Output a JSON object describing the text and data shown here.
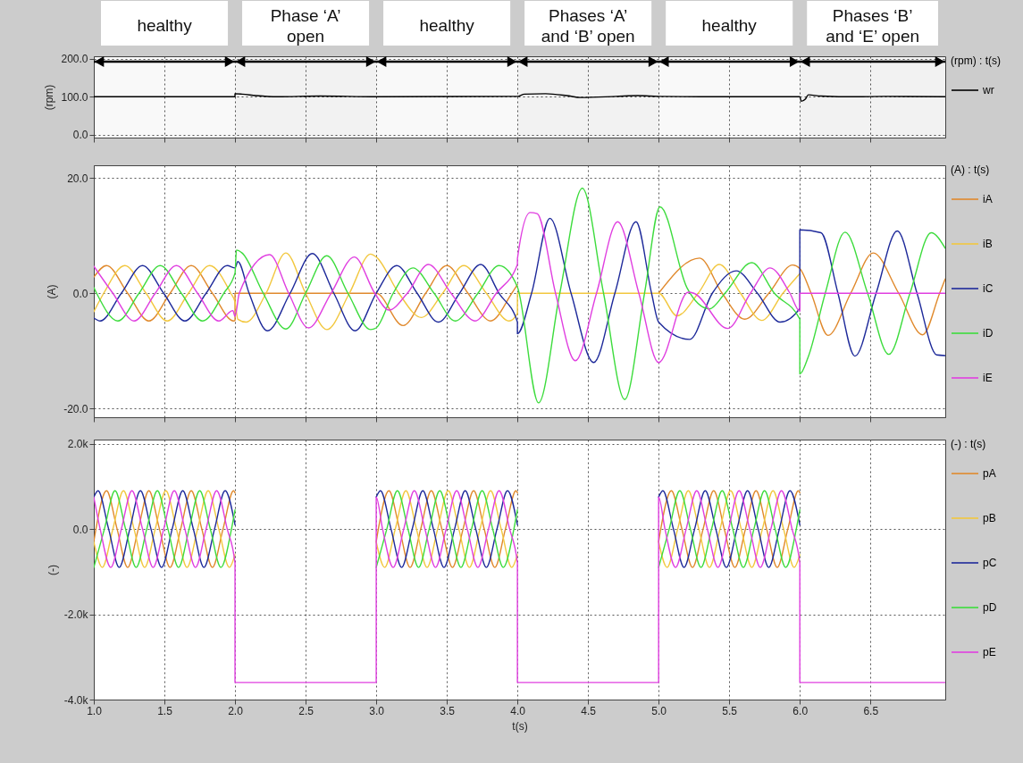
{
  "chart_data": [
    {
      "type": "line",
      "ylabel": "(rpm)",
      "legend_title": "(rpm) : t(s)",
      "legend": "right",
      "grid": true,
      "tick_labels": "y",
      "xlim": [
        1,
        7.03
      ],
      "ylim": [
        -8,
        207
      ],
      "xticks": [
        {
          "value": 1,
          "label": null
        },
        {
          "value": 1.5,
          "label": null
        },
        {
          "value": 2,
          "label": null
        },
        {
          "value": 2.5,
          "label": null
        },
        {
          "value": 3,
          "label": null
        },
        {
          "value": 3.5,
          "label": null
        },
        {
          "value": 4,
          "label": null
        },
        {
          "value": 4.5,
          "label": null
        },
        {
          "value": 5,
          "label": null
        },
        {
          "value": 5.5,
          "label": null
        },
        {
          "value": 6,
          "label": null
        },
        {
          "value": 6.5,
          "label": null
        }
      ],
      "yticks": [
        {
          "value": 0,
          "label": "0.0"
        },
        {
          "value": 100,
          "label": "100.0"
        },
        {
          "value": 200,
          "label": "200.0"
        }
      ],
      "bands": [
        {
          "axis": "x",
          "from": 1,
          "to": 2,
          "label": "healthy"
        },
        {
          "axis": "x",
          "from": 2,
          "to": 3,
          "label": "Phase ‘A’ open"
        },
        {
          "axis": "x",
          "from": 3,
          "to": 4,
          "label": "healthy"
        },
        {
          "axis": "x",
          "from": 4,
          "to": 5,
          "label": "Phases ‘A’ and ‘B’ open"
        },
        {
          "axis": "x",
          "from": 5,
          "to": 6,
          "label": "healthy"
        },
        {
          "axis": "x",
          "from": 6,
          "to": 7.03,
          "label": "Phases ‘B’ and ‘E’ open"
        }
      ],
      "series": [
        {
          "name": "wr",
          "color": "#000000",
          "x": [
            1,
            2,
            2,
            2.05,
            2.15,
            2.3,
            2.6,
            3,
            4,
            4.05,
            4.2,
            4.35,
            4.45,
            4.7,
            4.85,
            5,
            5.3,
            6,
            6.01,
            6.04,
            6.06,
            6.15,
            6.4,
            6.6,
            7.03
          ],
          "values": [
            100,
            100,
            108,
            107,
            103,
            100,
            102,
            100,
            101,
            107,
            108,
            103,
            98,
            101,
            103,
            101,
            100,
            100,
            88,
            94,
            105,
            102,
            100,
            101,
            100
          ]
        }
      ]
    },
    {
      "type": "line",
      "ylabel": "(A)",
      "legend_title": "(A) : t(s)",
      "legend": "right",
      "grid": true,
      "tick_labels": "y",
      "xlim": [
        1,
        7.03
      ],
      "ylim": [
        -21.5,
        22.2
      ],
      "xticks": [
        {
          "value": 1,
          "label": null
        },
        {
          "value": 1.5,
          "label": null
        },
        {
          "value": 2,
          "label": null
        },
        {
          "value": 2.5,
          "label": null
        },
        {
          "value": 3,
          "label": null
        },
        {
          "value": 3.5,
          "label": null
        },
        {
          "value": 4,
          "label": null
        },
        {
          "value": 4.5,
          "label": null
        },
        {
          "value": 5,
          "label": null
        },
        {
          "value": 5.5,
          "label": null
        },
        {
          "value": 6,
          "label": null
        },
        {
          "value": 6.5,
          "label": null
        }
      ],
      "yticks": [
        {
          "value": -20,
          "label": "-20.0"
        },
        {
          "value": 0,
          "label": "0.0"
        },
        {
          "value": 20,
          "label": "20.0"
        }
      ],
      "series": [
        {
          "name": "iA",
          "color": "#e0892c",
          "x": [
            1,
            1.09,
            1.24,
            1.39,
            1.54,
            1.69,
            1.84,
            1.99,
            2,
            2,
            3,
            3.19,
            3.35,
            3.5,
            3.65,
            3.81,
            3.96,
            4,
            4.5,
            5,
            5.29,
            5.45,
            5.61,
            5.78,
            5.95,
            6,
            6.08,
            6.2,
            6.36,
            6.52,
            6.7,
            6.87,
            6.99,
            7.03
          ],
          "values": [
            2.8,
            4.8,
            0,
            -4.8,
            0,
            4.8,
            0,
            -4.8,
            -4.7,
            0,
            0,
            -5.6,
            0,
            4.8,
            0,
            -4.8,
            0,
            1.5,
            null,
            0,
            6.1,
            0,
            -4.5,
            0,
            4.9,
            4.3,
            0,
            -7.3,
            0,
            7,
            0,
            -7.2,
            0,
            2.5
          ]
        },
        {
          "name": "iB",
          "color": "#f2c73e",
          "x": [
            1,
            1.07,
            1.22,
            1.37,
            1.52,
            1.67,
            1.82,
            1.97,
            2,
            2.02,
            2.08,
            2.22,
            2.36,
            2.5,
            2.65,
            2.81,
            2.96,
            3,
            3.16,
            3.32,
            3.47,
            3.62,
            3.78,
            3.94,
            4,
            4,
            5,
            5.13,
            5.28,
            5.43,
            5.58,
            5.73,
            5.88,
            6
          ],
          "values": [
            -3.2,
            0,
            4.8,
            0,
            -4.8,
            0,
            4.8,
            0,
            -1.5,
            -4.5,
            -5,
            0,
            7,
            0,
            -6.3,
            0,
            6.8,
            6.3,
            0,
            -4.2,
            0,
            4.8,
            0,
            -4.8,
            -3.5,
            0,
            0,
            -3.9,
            0,
            5,
            0,
            -4.7,
            0,
            3.4
          ]
        },
        {
          "name": "iC",
          "color": "#1e2a9a",
          "x": [
            1,
            1.045,
            1.195,
            1.345,
            1.495,
            1.645,
            1.795,
            1.945,
            2,
            2.02,
            2.1,
            2.23,
            2.39,
            2.548,
            2.7,
            2.85,
            3,
            3.145,
            3.29,
            3.44,
            3.59,
            3.74,
            3.87,
            4,
            4,
            4.1,
            4.23,
            4.38,
            4.54,
            4.69,
            4.84,
            4.95,
            5,
            5.22,
            5.38,
            5.55,
            5.7,
            5.86,
            6,
            6,
            6.15,
            6.27,
            6.39,
            6.54,
            6.69,
            6.83,
            6.97,
            7.03
          ],
          "values": [
            -4.3,
            -4.8,
            0,
            4.8,
            0,
            -4.8,
            0,
            4.8,
            4.4,
            5.5,
            0,
            -6.5,
            0,
            6.9,
            0,
            -6.5,
            0,
            4.8,
            0,
            -5,
            0,
            5,
            0,
            -5,
            -7,
            0,
            13,
            0,
            -12,
            0,
            12.4,
            0,
            -5,
            -8,
            0,
            3.9,
            0,
            -5,
            -2.6,
            11,
            10.5,
            0,
            -10.9,
            0,
            10.8,
            0,
            -10.7,
            -10.8
          ]
        },
        {
          "name": "iD",
          "color": "#3ddc3d",
          "x": [
            1,
            1.02,
            1.17,
            1.32,
            1.47,
            1.62,
            1.77,
            1.92,
            2,
            2.01,
            2.05,
            2.2,
            2.36,
            2.5,
            2.65,
            2.8,
            2.96,
            3,
            3.12,
            3.26,
            3.41,
            3.56,
            3.72,
            3.87,
            4,
            4.15,
            4.3,
            4.46,
            4.61,
            4.76,
            4.9,
            5.01,
            5.2,
            5.36,
            5.47,
            5.66,
            5.82,
            6,
            6,
            6.06,
            6.18,
            6.32,
            6.48,
            6.63,
            6.78,
            6.93,
            7.03
          ],
          "values": [
            1,
            0,
            -4.8,
            0,
            4.8,
            0,
            -4.8,
            0,
            3.5,
            7.5,
            7,
            0,
            -6.2,
            0,
            6.5,
            0,
            -6.3,
            -6,
            0,
            4.4,
            0,
            -4.8,
            0,
            4.8,
            1.1,
            -19,
            0,
            18.2,
            0,
            -18.4,
            0,
            15,
            1,
            -2.7,
            0,
            5.3,
            0,
            -4.5,
            -14,
            -11,
            0,
            10.6,
            0,
            -10.6,
            0,
            10.5,
            7.8
          ]
        },
        {
          "name": "iE",
          "color": "#e03fe0",
          "x": [
            1,
            1.135,
            1.285,
            1.435,
            1.585,
            1.735,
            1.885,
            1.985,
            2,
            2.03,
            2.245,
            2.38,
            2.52,
            2.68,
            2.845,
            2.99,
            3.09,
            3.22,
            3.37,
            3.53,
            3.7,
            3.85,
            4,
            4,
            4.09,
            4.14,
            4.27,
            4.41,
            4.56,
            4.71,
            4.86,
            5,
            5.21,
            5.25,
            5.49,
            5.65,
            5.79,
            5.93,
            6,
            6,
            7.03
          ],
          "values": [
            4.7,
            0,
            -4.8,
            0,
            4.8,
            0,
            -4.8,
            -3,
            -4,
            0,
            6.7,
            0,
            -6,
            0,
            6.3,
            0,
            -2.9,
            0,
            5,
            0,
            -4.8,
            0,
            5,
            6,
            14,
            13.8,
            0,
            -11.7,
            0,
            12.4,
            0,
            -12,
            0.2,
            0,
            -6.1,
            0,
            4.4,
            0,
            -3.1,
            0,
            0
          ]
        }
      ]
    },
    {
      "type": "line",
      "xlabel": "t(s)",
      "ylabel": "(-)",
      "legend_title": "(-) : t(s)",
      "legend": "right",
      "grid": true,
      "xlim": [
        1,
        7.03
      ],
      "ylim": [
        -4000,
        2100
      ],
      "xticks": [
        {
          "value": 1,
          "label": "1.0"
        },
        {
          "value": 1.5,
          "label": "1.5"
        },
        {
          "value": 2,
          "label": "2.0"
        },
        {
          "value": 2.5,
          "label": "2.5"
        },
        {
          "value": 3,
          "label": "3.0"
        },
        {
          "value": 3.5,
          "label": "3.5"
        },
        {
          "value": 4,
          "label": "4.0"
        },
        {
          "value": 4.5,
          "label": "4.5"
        },
        {
          "value": 5,
          "label": "5.0"
        },
        {
          "value": 5.5,
          "label": "5.5"
        },
        {
          "value": 6,
          "label": "6.0"
        },
        {
          "value": 6.5,
          "label": "6.5"
        }
      ],
      "yticks": [
        {
          "value": -4000,
          "label": "-4.0k"
        },
        {
          "value": -2000,
          "label": "-2.0k"
        },
        {
          "value": 0,
          "label": "0.0"
        },
        {
          "value": 2000,
          "label": "2.0k"
        }
      ],
      "series": [
        {
          "name": "pA",
          "color": "#e0892c",
          "x": [
            1,
            1.015,
            1.09,
            1.165,
            1.24,
            1.315,
            1.39,
            1.465,
            1.54,
            1.615,
            1.69,
            1.765,
            1.84,
            1.915,
            1.99,
            2,
            2.5,
            3,
            3.015,
            3.09,
            3.165,
            3.24,
            3.315,
            3.39,
            3.465,
            3.54,
            3.615,
            3.69,
            3.765,
            3.84,
            3.915,
            3.99,
            4,
            4.5,
            5,
            5.015,
            5.09,
            5.165,
            5.24,
            5.315,
            5.39,
            5.465,
            5.54,
            5.615,
            5.69,
            5.765,
            5.84,
            5.915,
            5.99,
            6
          ],
          "values": [
            -300,
            0,
            900,
            0,
            -900,
            0,
            900,
            0,
            -900,
            0,
            900,
            0,
            -900,
            0,
            900,
            850,
            null,
            -300,
            0,
            900,
            0,
            -900,
            0,
            900,
            0,
            -900,
            0,
            900,
            0,
            -900,
            0,
            900,
            850,
            null,
            -300,
            0,
            900,
            0,
            -900,
            0,
            900,
            0,
            -900,
            0,
            900,
            0,
            -900,
            0,
            900,
            850
          ]
        },
        {
          "name": "pB",
          "color": "#f2c73e",
          "x": [
            1,
            1.06,
            1.135,
            1.21,
            1.285,
            1.36,
            1.435,
            1.51,
            1.585,
            1.66,
            1.735,
            1.81,
            1.885,
            1.96,
            2,
            2.5,
            3,
            3.06,
            3.135,
            3.21,
            3.285,
            3.36,
            3.435,
            3.51,
            3.585,
            3.66,
            3.735,
            3.81,
            3.885,
            3.96,
            4,
            4.5,
            5,
            5.06,
            5.135,
            5.21,
            5.285,
            5.36,
            5.435,
            5.51,
            5.585,
            5.66,
            5.735,
            5.81,
            5.885,
            5.96,
            6
          ],
          "values": [
            -300,
            -900,
            0,
            900,
            0,
            -900,
            0,
            900,
            0,
            -900,
            0,
            900,
            0,
            -900,
            -600,
            null,
            -300,
            -900,
            0,
            900,
            0,
            -900,
            0,
            900,
            0,
            -900,
            0,
            900,
            0,
            -900,
            -600,
            null,
            -300,
            -900,
            0,
            900,
            0,
            -900,
            0,
            900,
            0,
            -900,
            0,
            900,
            0,
            -900,
            -600
          ]
        },
        {
          "name": "pC",
          "color": "#1e2a9a",
          "x": [
            1,
            1.03,
            1.105,
            1.18,
            1.255,
            1.33,
            1.405,
            1.48,
            1.555,
            1.63,
            1.705,
            1.78,
            1.855,
            1.93,
            2,
            2.5,
            3,
            3.03,
            3.105,
            3.18,
            3.255,
            3.33,
            3.405,
            3.48,
            3.555,
            3.63,
            3.705,
            3.78,
            3.855,
            3.93,
            4,
            4.5,
            5,
            5.03,
            5.105,
            5.18,
            5.255,
            5.33,
            5.405,
            5.48,
            5.555,
            5.63,
            5.705,
            5.78,
            5.855,
            5.93,
            6
          ],
          "values": [
            750,
            900,
            0,
            -900,
            0,
            900,
            0,
            -900,
            0,
            900,
            0,
            -900,
            0,
            900,
            100,
            null,
            750,
            900,
            0,
            -900,
            0,
            900,
            0,
            -900,
            0,
            900,
            0,
            -900,
            0,
            900,
            100,
            null,
            750,
            900,
            0,
            -900,
            0,
            900,
            0,
            -900,
            0,
            900,
            0,
            -900,
            0,
            900,
            100
          ]
        },
        {
          "name": "pD",
          "color": "#3ddc3d",
          "x": [
            1,
            1.075,
            1.15,
            1.225,
            1.3,
            1.375,
            1.45,
            1.525,
            1.6,
            1.675,
            1.75,
            1.825,
            1.9,
            1.975,
            2,
            2.5,
            3,
            3.075,
            3.15,
            3.225,
            3.3,
            3.375,
            3.45,
            3.525,
            3.6,
            3.675,
            3.75,
            3.825,
            3.9,
            3.975,
            4,
            4.5,
            5,
            5.075,
            5.15,
            5.225,
            5.3,
            5.375,
            5.45,
            5.525,
            5.6,
            5.675,
            5.75,
            5.825,
            5.9,
            5.975,
            6
          ],
          "values": [
            -900,
            0,
            900,
            0,
            -900,
            0,
            900,
            0,
            -900,
            0,
            900,
            0,
            -900,
            0,
            450,
            null,
            -900,
            0,
            900,
            0,
            -900,
            0,
            900,
            0,
            -900,
            0,
            900,
            0,
            -900,
            0,
            450,
            null,
            -900,
            0,
            900,
            0,
            -900,
            0,
            900,
            0,
            -900,
            0,
            900,
            0,
            -900,
            0,
            450
          ]
        },
        {
          "name": "pE",
          "color": "#e03fe0",
          "x": [
            1,
            1.045,
            1.12,
            1.195,
            1.27,
            1.345,
            1.42,
            1.495,
            1.57,
            1.645,
            1.72,
            1.795,
            1.87,
            1.945,
            2,
            2,
            3,
            3,
            3.045,
            3.12,
            3.195,
            3.27,
            3.345,
            3.42,
            3.495,
            3.57,
            3.645,
            3.72,
            3.795,
            3.87,
            3.945,
            4,
            4,
            5,
            5,
            5.045,
            5.12,
            5.195,
            5.27,
            5.345,
            5.42,
            5.495,
            5.57,
            5.645,
            5.72,
            5.795,
            5.87,
            5.945,
            6,
            6,
            7.03
          ],
          "values": [
            750,
            0,
            -900,
            0,
            900,
            0,
            -900,
            0,
            900,
            0,
            -900,
            0,
            900,
            0,
            -800,
            -3600,
            -3600,
            750,
            0,
            -900,
            0,
            900,
            0,
            -900,
            0,
            900,
            0,
            -900,
            0,
            900,
            0,
            -800,
            -3600,
            -3600,
            750,
            0,
            -900,
            0,
            900,
            0,
            -900,
            0,
            900,
            0,
            -900,
            0,
            900,
            0,
            -800,
            -3600,
            -3600
          ]
        }
      ]
    }
  ]
}
